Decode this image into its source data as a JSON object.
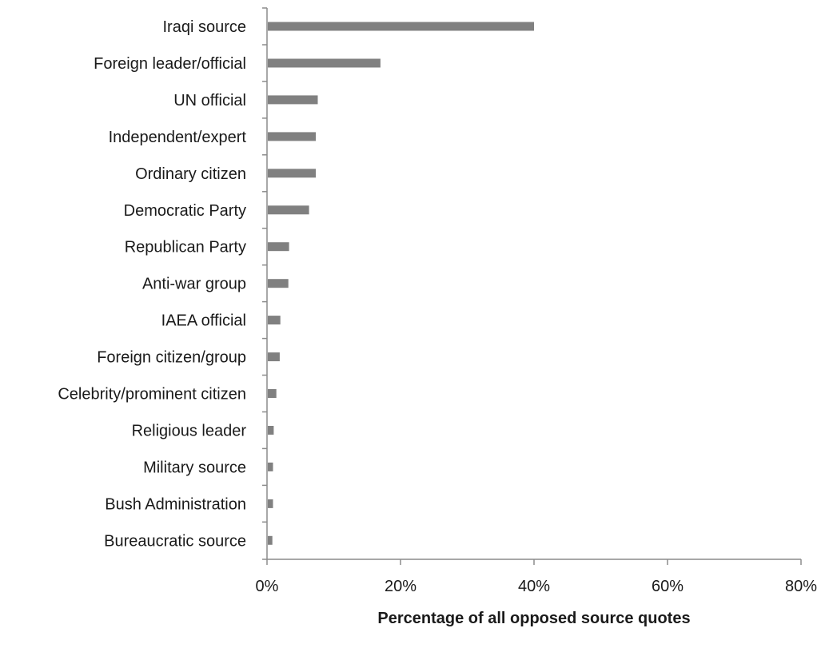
{
  "chart_data": {
    "type": "bar",
    "orientation": "horizontal",
    "categories": [
      "Iraqi source",
      "Foreign leader/official",
      "UN official",
      "Independent/expert",
      "Ordinary citizen",
      "Democratic Party",
      "Republican Party",
      "Anti-war group",
      "IAEA official",
      "Foreign citizen/group",
      "Celebrity/prominent citizen",
      "Religious leader",
      "Military source",
      "Bush Administration",
      "Bureaucratic source"
    ],
    "values": [
      40,
      17,
      7.6,
      7.3,
      7.3,
      6.3,
      3.3,
      3.2,
      2.0,
      1.9,
      1.4,
      1.0,
      0.9,
      0.9,
      0.8
    ],
    "title": "",
    "xlabel": "Percentage of all opposed source quotes",
    "ylabel": "",
    "xlim": [
      0,
      80
    ],
    "xticks": [
      0,
      20,
      40,
      60,
      80
    ],
    "xtick_labels": [
      "0%",
      "20%",
      "40%",
      "60%",
      "80%"
    ],
    "grid": false,
    "legend": "none",
    "bar_color": "#808080",
    "axis_color": "#8c8c8c"
  }
}
